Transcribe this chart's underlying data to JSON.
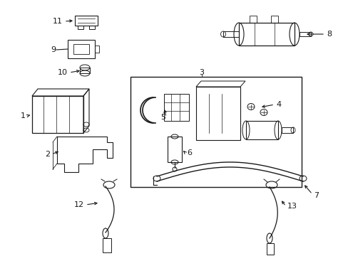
{
  "background_color": "#ffffff",
  "figure_width": 4.89,
  "figure_height": 3.6,
  "dpi": 100,
  "line_color": "#1a1a1a",
  "label_fontsize": 8.0
}
